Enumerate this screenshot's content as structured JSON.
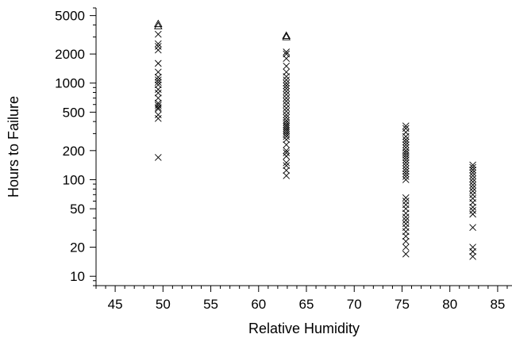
{
  "chart_data": {
    "type": "scatter",
    "title": "",
    "xlabel": "Relative Humidity",
    "ylabel": "Hours to Failure",
    "xlim": [
      43,
      86.5
    ],
    "ylim": [
      8,
      6000
    ],
    "y_scale": "log",
    "grid": false,
    "legend": "none",
    "x_ticks": [
      45,
      50,
      55,
      60,
      65,
      70,
      75,
      80,
      85
    ],
    "y_ticks": [
      10,
      20,
      50,
      100,
      200,
      500,
      1000,
      2000,
      5000
    ],
    "series": [
      {
        "marker": "x",
        "points": [
          [
            49.5,
            170
          ],
          [
            49.5,
            430
          ],
          [
            49.5,
            470
          ],
          [
            49.5,
            540
          ],
          [
            49.5,
            560
          ],
          [
            49.5,
            590
          ],
          [
            49.5,
            620
          ],
          [
            49.5,
            700
          ],
          [
            49.5,
            790
          ],
          [
            49.5,
            860
          ],
          [
            49.5,
            960
          ],
          [
            49.5,
            1020
          ],
          [
            49.5,
            1080
          ],
          [
            49.5,
            1150
          ],
          [
            49.5,
            1300
          ],
          [
            49.5,
            1600
          ],
          [
            49.5,
            2200
          ],
          [
            49.5,
            2400
          ],
          [
            49.5,
            2550
          ],
          [
            49.5,
            3200
          ],
          [
            62.9,
            110
          ],
          [
            62.9,
            125
          ],
          [
            62.9,
            140
          ],
          [
            62.9,
            150
          ],
          [
            62.9,
            175
          ],
          [
            62.9,
            190
          ],
          [
            62.9,
            200
          ],
          [
            62.9,
            230
          ],
          [
            62.9,
            260
          ],
          [
            62.9,
            280
          ],
          [
            62.9,
            295
          ],
          [
            62.9,
            310
          ],
          [
            62.9,
            325
          ],
          [
            62.9,
            340
          ],
          [
            62.9,
            355
          ],
          [
            62.9,
            370
          ],
          [
            62.9,
            390
          ],
          [
            62.9,
            410
          ],
          [
            62.9,
            440
          ],
          [
            62.9,
            470
          ],
          [
            62.9,
            510
          ],
          [
            62.9,
            550
          ],
          [
            62.9,
            600
          ],
          [
            62.9,
            650
          ],
          [
            62.9,
            700
          ],
          [
            62.9,
            760
          ],
          [
            62.9,
            820
          ],
          [
            62.9,
            880
          ],
          [
            62.9,
            940
          ],
          [
            62.9,
            1000
          ],
          [
            62.9,
            1080
          ],
          [
            62.9,
            1170
          ],
          [
            62.9,
            1300
          ],
          [
            62.9,
            1500
          ],
          [
            62.9,
            1800
          ],
          [
            62.9,
            2000
          ],
          [
            62.9,
            2100
          ],
          [
            75.4,
            17
          ],
          [
            75.4,
            20
          ],
          [
            75.4,
            23
          ],
          [
            75.4,
            26
          ],
          [
            75.4,
            29
          ],
          [
            75.4,
            32
          ],
          [
            75.4,
            35
          ],
          [
            75.4,
            38
          ],
          [
            75.4,
            41
          ],
          [
            75.4,
            45
          ],
          [
            75.4,
            50
          ],
          [
            75.4,
            55
          ],
          [
            75.4,
            60
          ],
          [
            75.4,
            65
          ],
          [
            75.4,
            100
          ],
          [
            75.4,
            108
          ],
          [
            75.4,
            115
          ],
          [
            75.4,
            122
          ],
          [
            75.4,
            130
          ],
          [
            75.4,
            140
          ],
          [
            75.4,
            150
          ],
          [
            75.4,
            160
          ],
          [
            75.4,
            170
          ],
          [
            75.4,
            180
          ],
          [
            75.4,
            190
          ],
          [
            75.4,
            200
          ],
          [
            75.4,
            215
          ],
          [
            75.4,
            230
          ],
          [
            75.4,
            245
          ],
          [
            75.4,
            260
          ],
          [
            75.4,
            280
          ],
          [
            75.4,
            310
          ],
          [
            75.4,
            340
          ],
          [
            75.4,
            360
          ],
          [
            82.4,
            16
          ],
          [
            82.4,
            18
          ],
          [
            82.4,
            20
          ],
          [
            82.4,
            32
          ],
          [
            82.4,
            44
          ],
          [
            82.4,
            48
          ],
          [
            82.4,
            52
          ],
          [
            82.4,
            58
          ],
          [
            82.4,
            64
          ],
          [
            82.4,
            70
          ],
          [
            82.4,
            76
          ],
          [
            82.4,
            82
          ],
          [
            82.4,
            88
          ],
          [
            82.4,
            95
          ],
          [
            82.4,
            102
          ],
          [
            82.4,
            110
          ],
          [
            82.4,
            118
          ],
          [
            82.4,
            126
          ],
          [
            82.4,
            134
          ],
          [
            82.4,
            142
          ]
        ]
      },
      {
        "marker": "triangle",
        "points": [
          [
            49.5,
            3900
          ],
          [
            49.5,
            4100
          ],
          [
            62.9,
            3000
          ],
          [
            62.9,
            3100
          ]
        ]
      }
    ]
  }
}
